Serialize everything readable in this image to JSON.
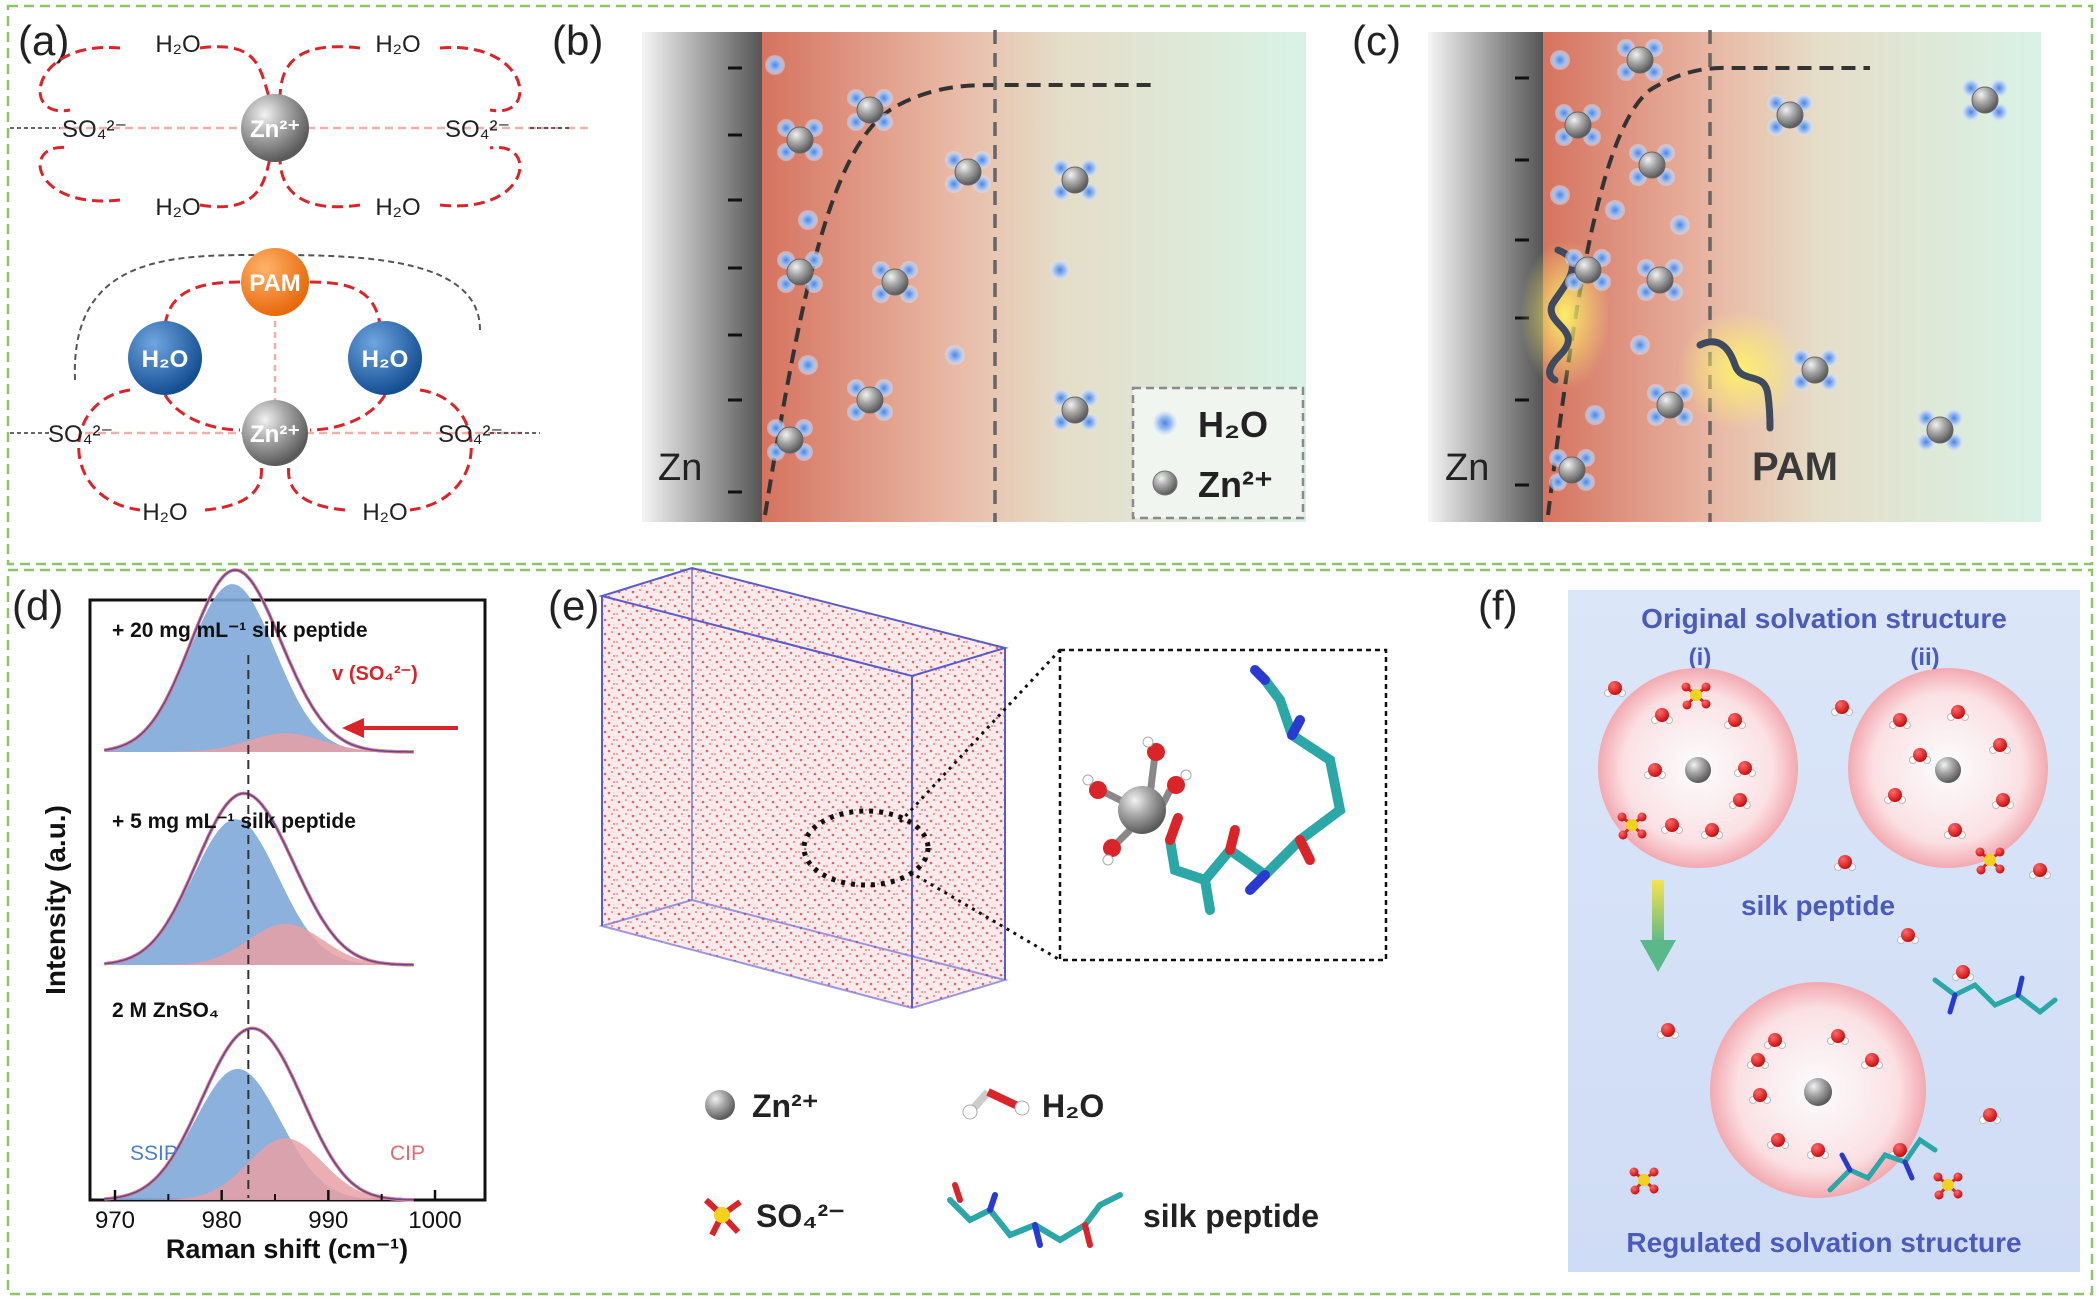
{
  "panels": {
    "a": {
      "label": "(a)",
      "top": {
        "center_ion": "Zn²⁺",
        "water": "H₂O",
        "sulfate_left": "SO₄²⁻",
        "sulfate_right": "SO₄²⁻"
      },
      "bottom": {
        "additive": "PAM",
        "center_ion": "Zn²⁺",
        "bound_water": "H₂O",
        "water": "H₂O",
        "sulfate_left": "SO₄²⁻",
        "sulfate_right": "SO₄²⁻"
      }
    },
    "b": {
      "label": "(b)",
      "electrode": "Zn",
      "legend_water": "H₂O",
      "legend_zinc": "Zn²⁺"
    },
    "c": {
      "label": "(c)",
      "electrode": "Zn",
      "additive": "PAM"
    },
    "d": {
      "label": "(d)",
      "ylabel": "Intensity (a.u.)",
      "xlabel": "Raman shift (cm⁻¹)",
      "curve_labels": [
        "+ 20 mg mL⁻¹ silk peptide",
        "+ 5 mg mL⁻¹ silk peptide",
        "2 M ZnSO₄"
      ],
      "peak_label": "v (SO₄²⁻)",
      "ssip_label": "SSIP",
      "cip_label": "CIP"
    },
    "e": {
      "label": "(e)",
      "legend": {
        "zinc": "Zn²⁺",
        "water": "H₂O",
        "sulfate": "SO₄²⁻",
        "peptide": "silk peptide"
      }
    },
    "f": {
      "label": "(f)",
      "title_top": "Original solvation structure",
      "sub_i": "(i)",
      "sub_ii": "(ii)",
      "arrow_label": "silk peptide",
      "title_bottom": "Regulated solvation structure"
    }
  },
  "chart_data": {
    "type": "area",
    "xlabel": "Raman shift (cm⁻¹)",
    "ylabel": "Intensity (a.u.)",
    "xlim": [
      970,
      1000
    ],
    "xticks": [
      970,
      980,
      990,
      1000
    ],
    "reference_line_x": 982.5,
    "series": [
      {
        "name": "2 M ZnSO₄",
        "ssip_center": 981.5,
        "cip_center": 986,
        "cip_fraction": 0.32
      },
      {
        "name": "+ 5 mg mL⁻¹ silk peptide",
        "ssip_center": 981.3,
        "cip_center": 986,
        "cip_fraction": 0.22
      },
      {
        "name": "+ 20 mg mL⁻¹ silk peptide",
        "ssip_center": 981,
        "cip_center": 986,
        "cip_fraction": 0.1
      }
    ]
  },
  "colors": {
    "frame": "#8cc46a",
    "bond": "#d9252a",
    "zinc": "#8a8a8a",
    "water_blue": "#1f63b0",
    "pam": "#f0801f",
    "ssip": "#7ea8d8",
    "cip": "#e8a0a4",
    "electrolyte_red": "#d97a66",
    "electrolyte_green": "#dcf3e8"
  }
}
